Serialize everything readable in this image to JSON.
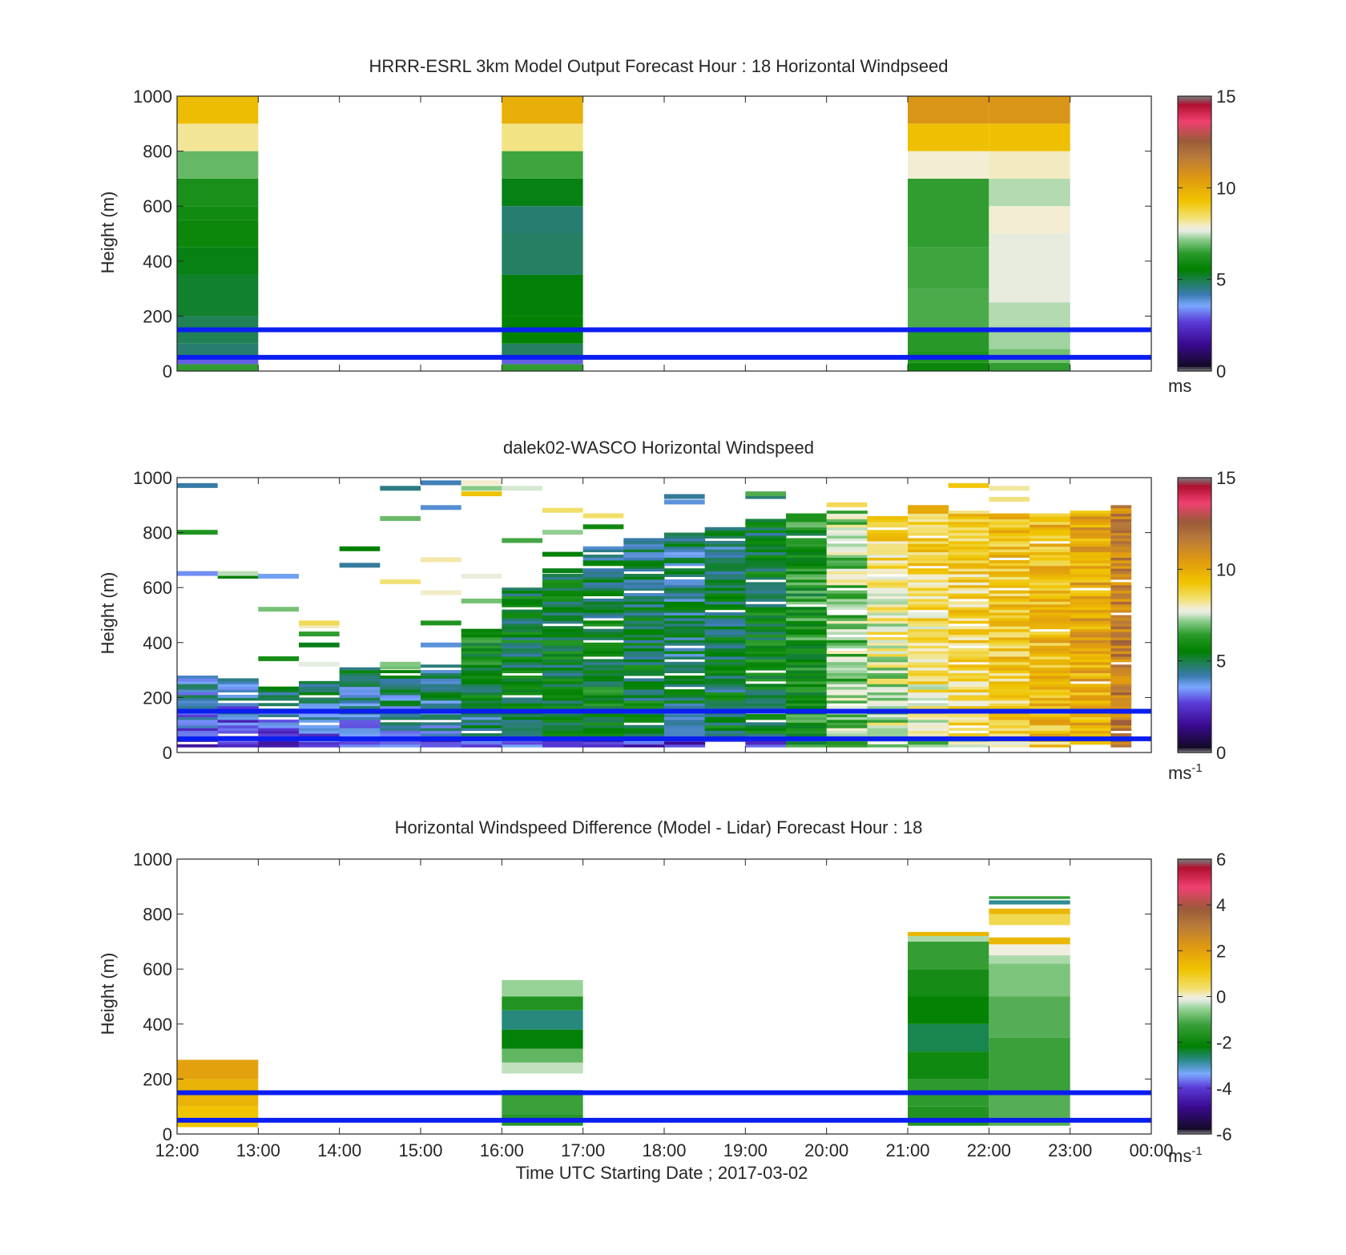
{
  "colors": {
    "reference_line": "#0a1ef0",
    "background": "#ffffff"
  },
  "chart_data": [
    {
      "type": "heatmap",
      "title": "HRRR-ESRL 3km Model Output   Forecast Hour : 18 Horizontal Windpseed",
      "ylabel": "Height (m)",
      "xlabel": "",
      "ylim": [
        0,
        1000
      ],
      "yticks": [
        "0",
        "200",
        "400",
        "600",
        "800",
        "1000"
      ],
      "xticks_shown": false,
      "x_range_hours": [
        12,
        24
      ],
      "colorbar": {
        "min": 0,
        "max": 15,
        "ticks": [
          "0",
          "5",
          "10",
          "15"
        ],
        "unit": "ms",
        "unit_sup": ""
      },
      "colorscale": "speed",
      "reference_lines_m": [
        150,
        50
      ],
      "columns": [
        {
          "x0": 12,
          "x1": 13,
          "cells": [
            [
              0,
              25,
              6.5
            ],
            [
              25,
              45,
              3.0
            ],
            [
              45,
              100,
              4.7
            ],
            [
              100,
              200,
              4.9
            ],
            [
              200,
              350,
              5.2
            ],
            [
              350,
              450,
              5.4
            ],
            [
              450,
              550,
              5.8
            ],
            [
              550,
              600,
              5.9
            ],
            [
              600,
              700,
              6.1
            ],
            [
              700,
              800,
              6.9
            ],
            [
              800,
              900,
              8.2
            ],
            [
              900,
              1000,
              9.5
            ]
          ]
        },
        {
          "x0": 16,
          "x1": 17,
          "cells": [
            [
              0,
              25,
              6.5
            ],
            [
              25,
              45,
              3.0
            ],
            [
              45,
              100,
              4.8
            ],
            [
              100,
              200,
              5.6
            ],
            [
              200,
              350,
              5.5
            ],
            [
              350,
              500,
              4.8
            ],
            [
              500,
              600,
              4.7
            ],
            [
              600,
              700,
              5.4
            ],
            [
              700,
              800,
              6.6
            ],
            [
              800,
              900,
              8.3
            ],
            [
              900,
              1000,
              9.9
            ]
          ]
        },
        {
          "x0": 21,
          "x1": 22,
          "cells": [
            [
              0,
              30,
              5.8
            ],
            [
              30,
              70,
              6.2
            ],
            [
              70,
              150,
              6.4
            ],
            [
              150,
              300,
              6.7
            ],
            [
              300,
              450,
              6.6
            ],
            [
              450,
              700,
              6.5
            ],
            [
              700,
              800,
              7.9
            ],
            [
              800,
              900,
              9.4
            ],
            [
              900,
              1000,
              10.7
            ]
          ]
        },
        {
          "x0": 22,
          "x1": 23,
          "cells": [
            [
              0,
              30,
              6.5
            ],
            [
              30,
              80,
              7.0
            ],
            [
              80,
              150,
              7.3
            ],
            [
              150,
              250,
              7.4
            ],
            [
              250,
              500,
              7.7
            ],
            [
              500,
              600,
              7.9
            ],
            [
              600,
              700,
              7.4
            ],
            [
              700,
              800,
              8.0
            ],
            [
              800,
              900,
              9.4
            ],
            [
              900,
              1000,
              10.7
            ]
          ]
        }
      ]
    },
    {
      "type": "heatmap",
      "title": "dalek02-WASCO  Horizontal Windspeed",
      "ylabel": "Height (m)",
      "xlabel": "",
      "ylim": [
        0,
        1000
      ],
      "yticks": [
        "0",
        "200",
        "400",
        "600",
        "800",
        "1000"
      ],
      "xticks_shown": false,
      "x_range_hours": [
        12,
        24
      ],
      "colorbar": {
        "min": 0,
        "max": 15,
        "ticks": [
          "0",
          "5",
          "10",
          "15"
        ],
        "unit": "ms",
        "unit_sup": "-1"
      },
      "colorscale": "speed",
      "reference_lines_m": [
        150,
        50
      ],
      "time_bins_hours": [
        12.0,
        12.5,
        13.0,
        13.5,
        14.0,
        14.5,
        15.0,
        15.5,
        16.0,
        16.5,
        17.0,
        17.5,
        18.0,
        18.5,
        19.0,
        19.5,
        20.0,
        20.5,
        21.0,
        21.5,
        22.0,
        22.5,
        23.0,
        23.5
      ],
      "profile_top_m": [
        280,
        270,
        240,
        260,
        310,
        300,
        320,
        450,
        600,
        650,
        750,
        780,
        800,
        820,
        850,
        870,
        880,
        860,
        900,
        880,
        870,
        870,
        880,
        900
      ],
      "profile_bottom_speed": [
        2.5,
        2.0,
        2.2,
        2.4,
        2.8,
        3.5,
        4.0,
        4.5,
        5.0,
        5.5,
        5.8,
        5.4,
        5.0,
        5.2,
        5.6,
        6.2,
        6.8,
        7.2,
        8.0,
        8.5,
        9.0,
        9.5,
        10.0,
        11.5
      ],
      "profile_top_speed": [
        4.5,
        4.8,
        5.0,
        5.2,
        5.0,
        4.9,
        4.8,
        6.0,
        5.5,
        5.2,
        5.0,
        4.8,
        4.6,
        4.8,
        5.2,
        6.0,
        7.5,
        8.8,
        9.2,
        9.0,
        9.3,
        9.5,
        10.2,
        11.2
      ]
    },
    {
      "type": "heatmap",
      "title": "Horizontal Windspeed Difference (Model - Lidar) Forecast Hour : 18",
      "ylabel": "Height (m)",
      "xlabel": "Time UTC  Starting Date ; 2017-03-02",
      "ylim": [
        0,
        1000
      ],
      "yticks": [
        "0",
        "200",
        "400",
        "600",
        "800",
        "1000"
      ],
      "xticks": [
        "12:00",
        "13:00",
        "14:00",
        "15:00",
        "16:00",
        "17:00",
        "18:00",
        "19:00",
        "20:00",
        "21:00",
        "22:00",
        "23:00",
        "00:00"
      ],
      "x_range_hours": [
        12,
        24
      ],
      "colorbar": {
        "min": -6,
        "max": 6,
        "ticks": [
          "-6",
          "-4",
          "-2",
          "0",
          "2",
          "4",
          "6"
        ],
        "unit": "ms",
        "unit_sup": "-1"
      },
      "colorscale": "diff",
      "reference_lines_m": [
        150,
        50
      ],
      "columns": [
        {
          "x0": 12,
          "x1": 13,
          "cells": [
            [
              25,
              100,
              1.2
            ],
            [
              100,
              200,
              1.6
            ],
            [
              200,
              270,
              2.0
            ]
          ]
        },
        {
          "x0": 16,
          "x1": 17,
          "cells": [
            [
              30,
              70,
              -1.5
            ],
            [
              70,
              160,
              -1.2
            ],
            [
              220,
              260,
              -0.3
            ],
            [
              260,
              310,
              -0.9
            ],
            [
              310,
              380,
              -2.2
            ],
            [
              380,
              450,
              -2.7
            ],
            [
              450,
              500,
              -1.6
            ],
            [
              500,
              560,
              -0.5
            ]
          ]
        },
        {
          "x0": 21,
          "x1": 22,
          "cells": [
            [
              30,
              100,
              -1.6
            ],
            [
              100,
              200,
              -1.4
            ],
            [
              200,
              300,
              -1.9
            ],
            [
              300,
              400,
              -2.5
            ],
            [
              400,
              500,
              -2.1
            ],
            [
              500,
              600,
              -1.8
            ],
            [
              600,
              700,
              -1.3
            ],
            [
              700,
              720,
              -0.4
            ],
            [
              720,
              735,
              1.5
            ]
          ]
        },
        {
          "x0": 22,
          "x1": 23,
          "cells": [
            [
              30,
              150,
              -1.0
            ],
            [
              150,
              350,
              -1.2
            ],
            [
              350,
              500,
              -1.0
            ],
            [
              500,
              620,
              -0.7
            ],
            [
              620,
              650,
              -0.4
            ],
            [
              650,
              690,
              0.0
            ],
            [
              690,
              715,
              1.5
            ],
            [
              760,
              800,
              0.6
            ],
            [
              800,
              820,
              1.5
            ],
            [
              835,
              850,
              -2.8
            ],
            [
              855,
              865,
              -1.2
            ]
          ]
        }
      ]
    }
  ]
}
